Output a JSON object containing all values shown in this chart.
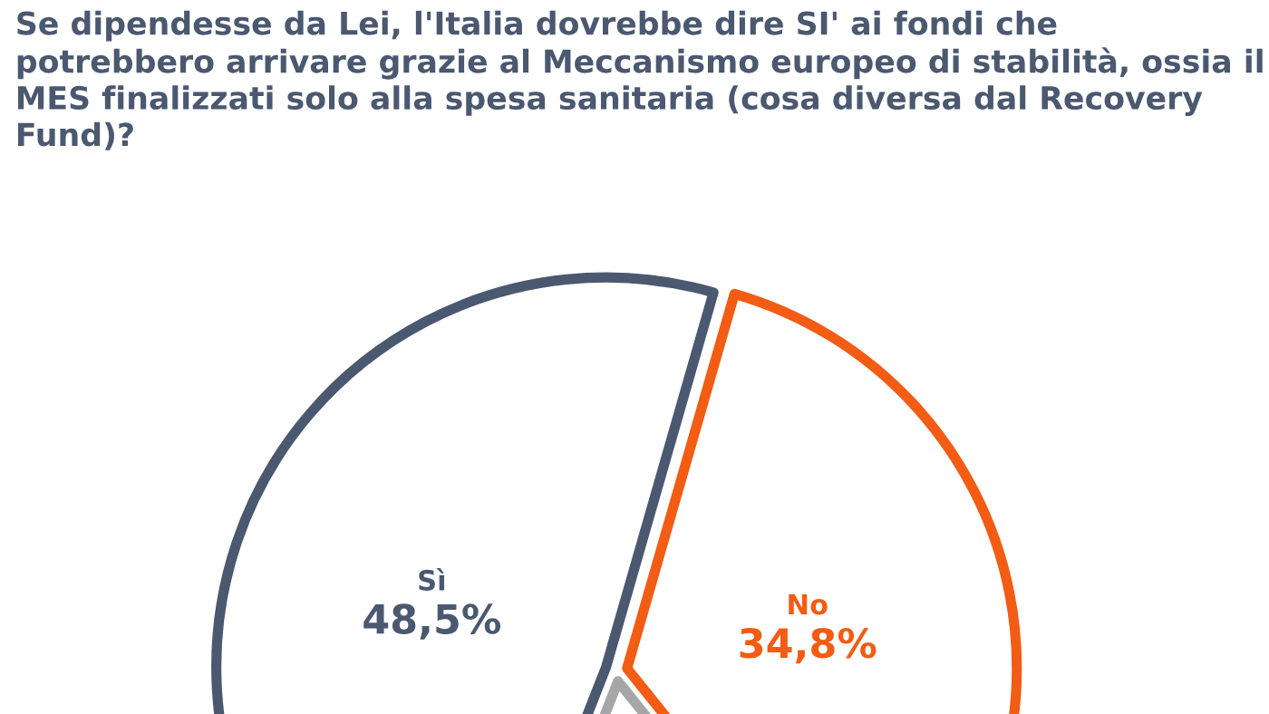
{
  "chart_data": {
    "type": "pie",
    "title": "Se dipendesse da Lei, l'Italia dovrebbe dire SI' ai fondi che potrebbero arrivare grazie al Meccanismo europeo di stabilità, ossia il MES finalizzati solo alla spesa sanitaria (cosa diversa dal Recovery Fund)?",
    "categories": [
      "No",
      null,
      "Sì"
    ],
    "values": [
      34.8,
      16.7,
      48.5
    ],
    "value_labels": [
      "34,8%",
      null,
      "48,5%"
    ],
    "colors": [
      "#f25c14",
      "#a6a6a6",
      "#4a5870"
    ]
  }
}
